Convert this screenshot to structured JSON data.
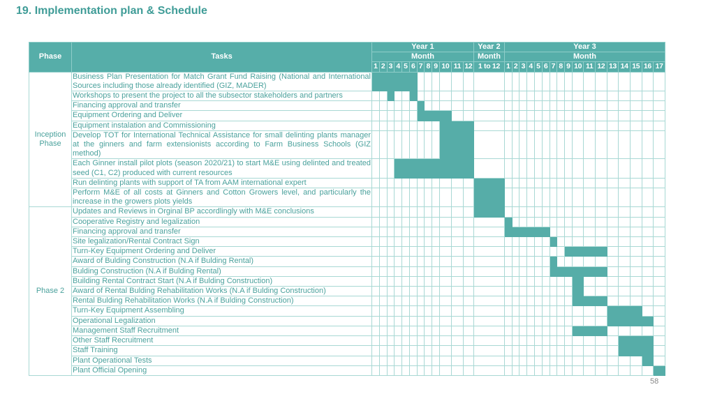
{
  "title": "19. Implementation plan & Schedule",
  "page_number": "58",
  "header": {
    "phase": "Phase",
    "tasks": "Tasks",
    "years": [
      {
        "label": "Year 1",
        "unit": "Month",
        "columns": [
          "1",
          "2",
          "3",
          "4",
          "5",
          "6",
          "7",
          "8",
          "9",
          "10",
          "11",
          "12"
        ]
      },
      {
        "label": "Year 2",
        "unit": "Month",
        "columns": [
          "1 to 12"
        ]
      },
      {
        "label": "Year 3",
        "unit": "Month",
        "columns": [
          "1",
          "2",
          "3",
          "4",
          "5",
          "6",
          "7",
          "8",
          "9",
          "10",
          "11",
          "12",
          "13",
          "14",
          "15",
          "16",
          "17"
        ]
      }
    ]
  },
  "groups": [
    {
      "phase": "Inception Phase",
      "tasks": [
        {
          "task": "Business Plan Presentation for Match Grant Fund Raising (National and International Sources including those already identified (GIZ, MADER)",
          "columns": [
            1,
            2,
            3,
            4,
            5,
            6
          ]
        },
        {
          "task": "Workshops to present the project to all the subsector stakeholders and partners",
          "columns": [
            3,
            6
          ]
        },
        {
          "task": "Financing approval and transfer",
          "columns": [
            7
          ]
        },
        {
          "task": "Equipment Ordering and Deliver",
          "columns": [
            7,
            8,
            9,
            10
          ]
        },
        {
          "task": "Equipment instalation and Commissioning",
          "columns": [
            10,
            11,
            12
          ]
        },
        {
          "task": "Develop TOT for International Technical Assistance for small delinting plants manager at the ginners and farm extensionists according to Farm Business Schools (GIZ method)",
          "columns": [
            10,
            11,
            12
          ]
        },
        {
          "task": "Each Ginner install pilot plots (season 2020/21) to start M&E using delinted and treated seed (C1, C2) produced with current resources",
          "columns": [
            4,
            5,
            6,
            7,
            8,
            9,
            10,
            11,
            12
          ]
        },
        {
          "task": "Run delinting plants with support of TA from AAM international expert",
          "columns": [
            13
          ]
        },
        {
          "task": "Perform M&E of all costs at Ginners and Cotton Growers level, and particularly the increase in the growers plots yields",
          "columns": [
            13
          ]
        }
      ]
    },
    {
      "phase": "Phase 2",
      "tasks": [
        {
          "task": "Updates and Reviews in Orginal BP accordlingly with M&E conclusions",
          "columns": [
            13
          ]
        },
        {
          "task": "Cooperative Registry and legalization",
          "columns": [
            14
          ]
        },
        {
          "task": "Financing approval and transfer",
          "columns": [
            14,
            15,
            16,
            17,
            18,
            19
          ]
        },
        {
          "task": "Site legalization/Rental Contract Sign",
          "columns": [
            20
          ]
        },
        {
          "task": "Turn-Key Equipment Ordering and Deliver",
          "columns": [
            22,
            23,
            24,
            25
          ]
        },
        {
          "task": "Award of Bulding Construction (N.A if Bulding Rental)",
          "columns": [
            20
          ]
        },
        {
          "task": "Bulding Construction (N.A if Bulding Rental)",
          "columns": [
            20,
            21,
            22,
            23,
            24,
            25
          ]
        },
        {
          "task": "Building Rental Contract Start (N.A if Bulding Construction)",
          "columns": [
            23
          ]
        },
        {
          "task": "Award of Rental Bulding Rehabilitation Works (N.A if Bulding Construction)",
          "columns": [
            23
          ]
        },
        {
          "task": "Rental Bulding Rehabilitation Works (N.A if Bulding Construction)",
          "columns": [
            23,
            24,
            25
          ]
        },
        {
          "task": "Turn-Key Equipment Assembling",
          "columns": [
            26,
            27,
            28
          ]
        },
        {
          "task": "Operational Legalization",
          "columns": [
            26,
            27,
            28,
            29
          ]
        },
        {
          "task": "Management Staff Recruitment",
          "columns": [
            23,
            24,
            25
          ]
        },
        {
          "task": "Other Staff Recruitment",
          "columns": [
            27,
            28,
            29
          ]
        },
        {
          "task": "Staff Training",
          "columns": [
            27,
            28,
            29
          ]
        },
        {
          "task": "Plant Operational Tests",
          "columns": [
            29
          ]
        },
        {
          "task": "Plant Official Opening",
          "columns": [
            30
          ]
        }
      ]
    }
  ]
}
